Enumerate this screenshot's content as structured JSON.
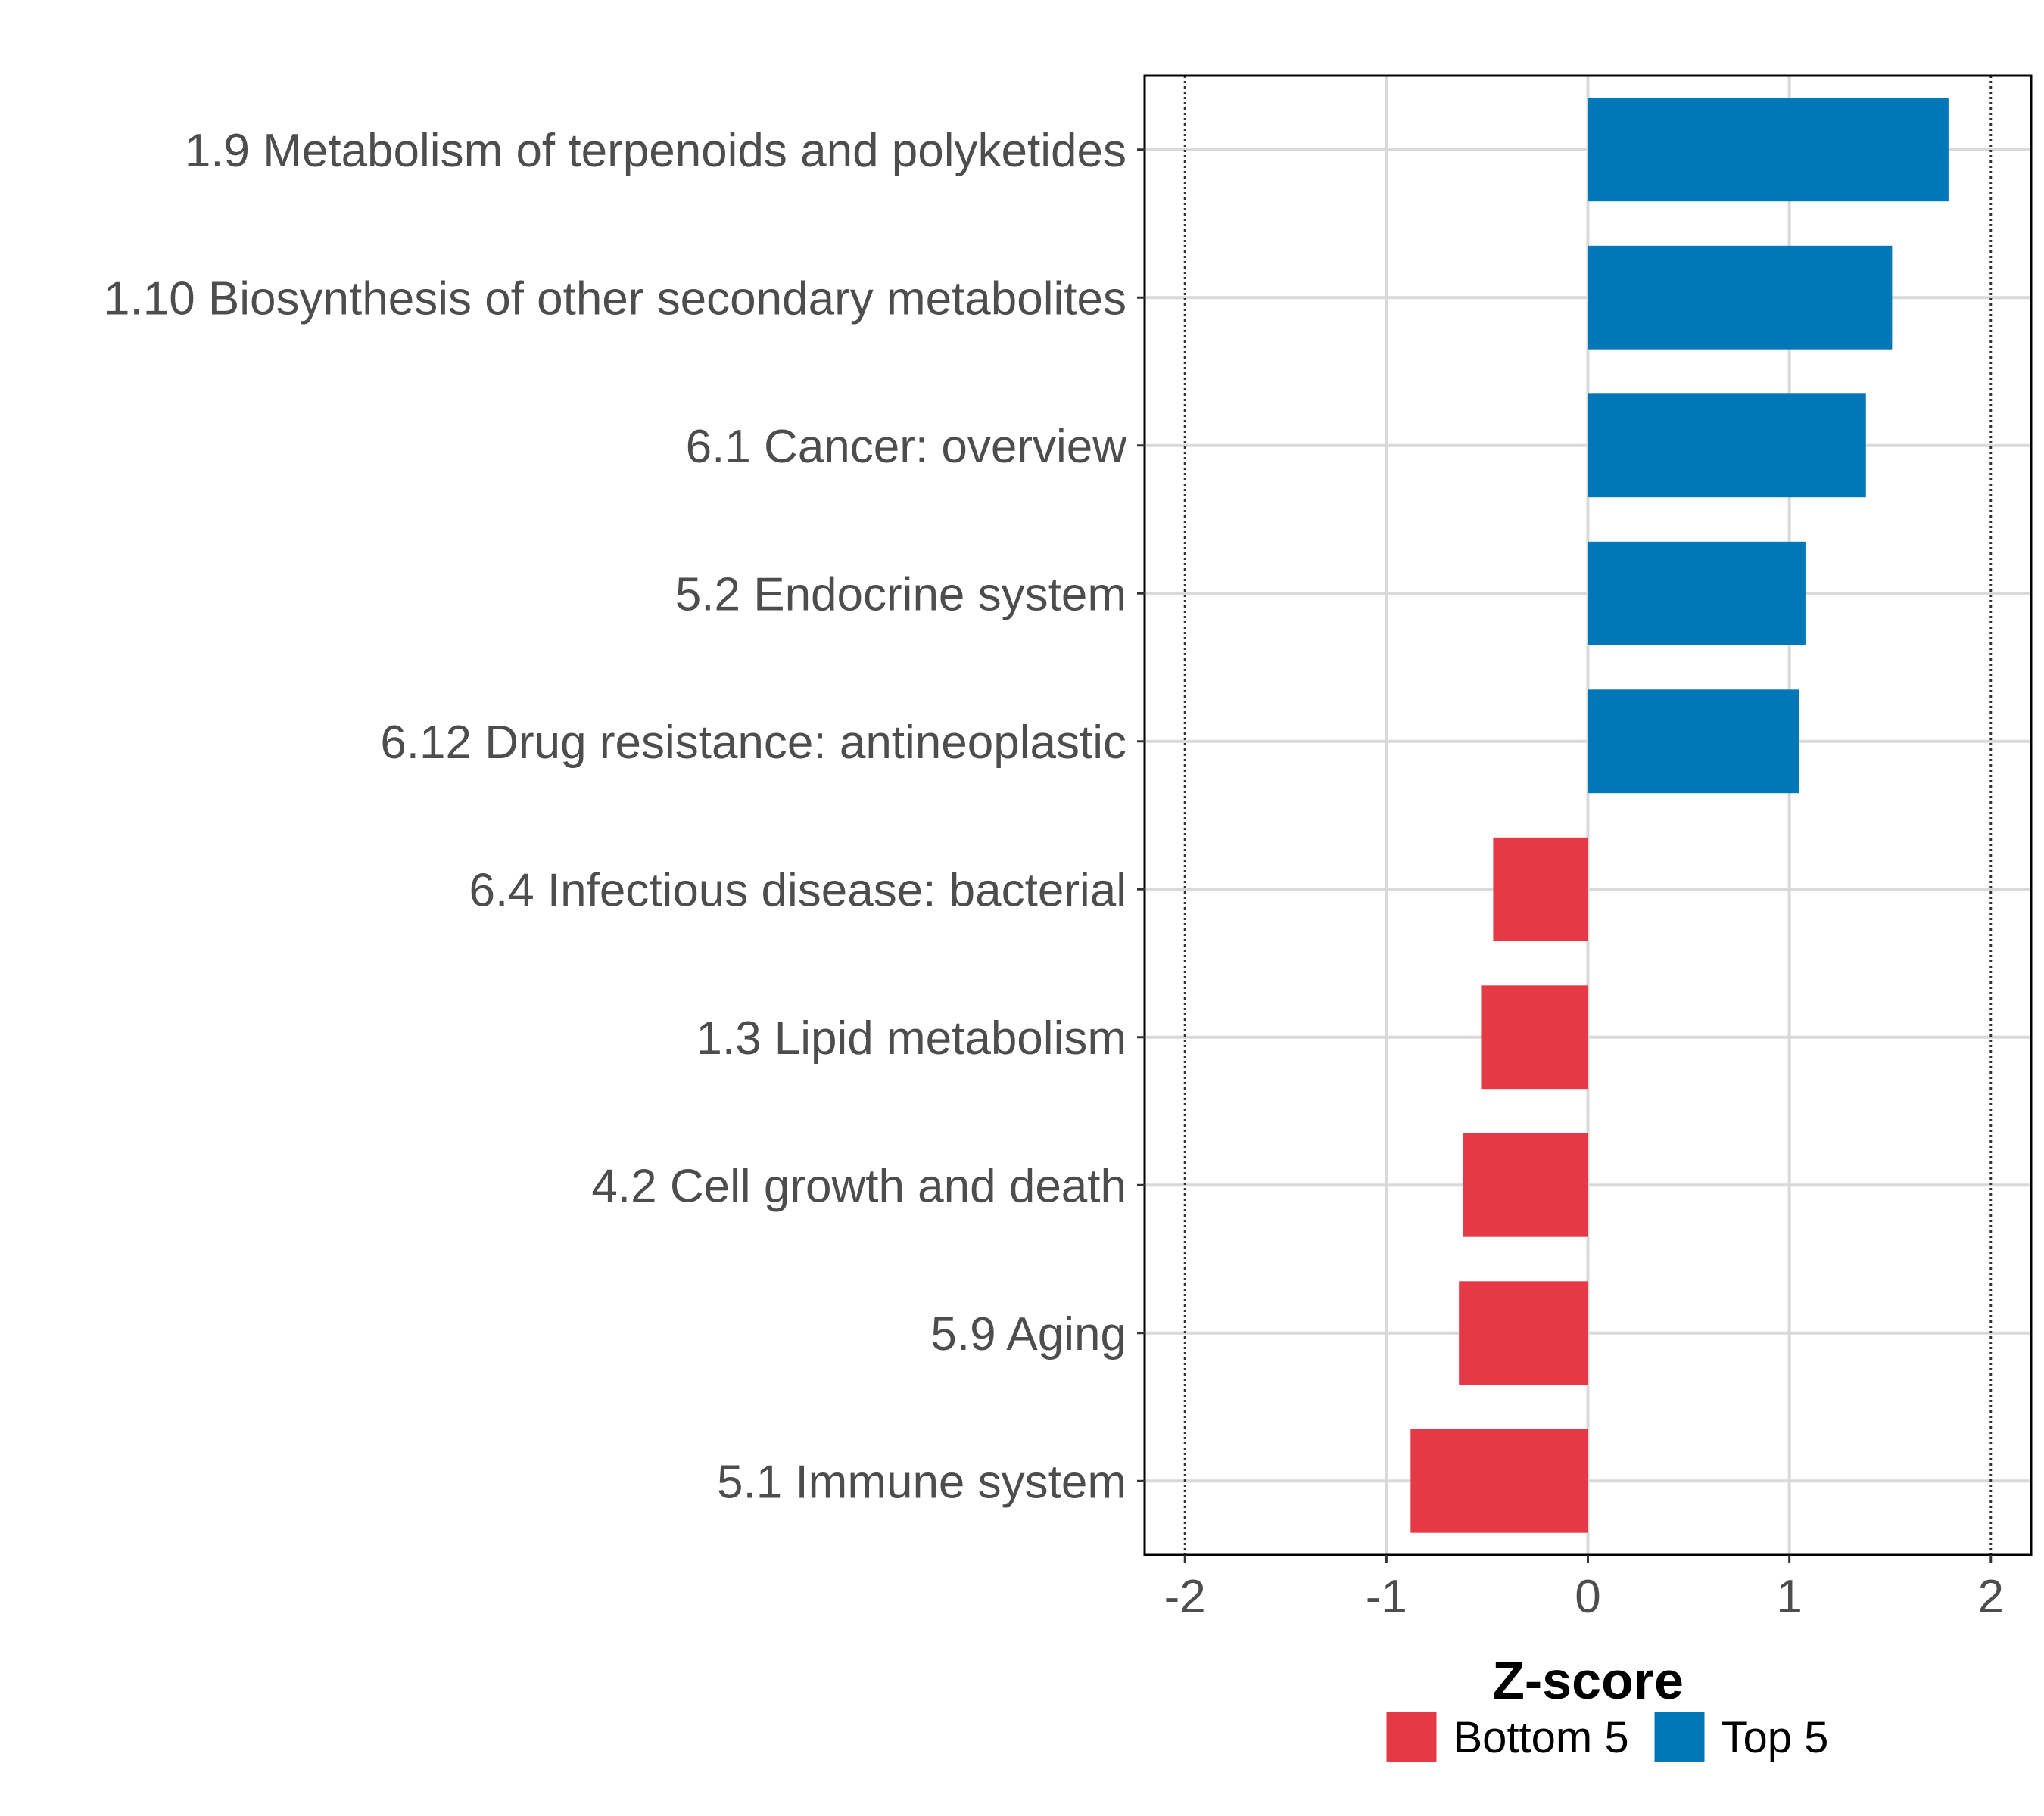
{
  "chart_data": {
    "type": "bar",
    "orientation": "horizontal",
    "title": "",
    "xlabel": "Z-score",
    "ylabel": "",
    "xlim": [
      -2.2,
      2.2
    ],
    "x_ticks": [
      -2,
      -1,
      0,
      1,
      2
    ],
    "x_tick_labels": [
      "-2",
      "-1",
      "0",
      "1",
      "2"
    ],
    "reference_lines": [
      -2,
      2
    ],
    "grid": true,
    "categories": [
      "1.9 Metabolism of terpenoids and polyketides",
      "1.10 Biosynthesis of other secondary metabolites",
      "6.1 Cancer: overview",
      "5.2 Endocrine system",
      "6.12 Drug resistance: antineoplastic",
      "6.4 Infectious disease: bacterial",
      "1.3 Lipid metabolism",
      "4.2 Cell growth and death",
      "5.9 Aging",
      "5.1 Immune system"
    ],
    "values": [
      1.79,
      1.51,
      1.38,
      1.08,
      1.05,
      -0.47,
      -0.53,
      -0.62,
      -0.64,
      -0.88
    ],
    "groups": [
      "Top 5",
      "Top 5",
      "Top 5",
      "Top 5",
      "Top 5",
      "Bottom 5",
      "Bottom 5",
      "Bottom 5",
      "Bottom 5",
      "Bottom 5"
    ],
    "legend": {
      "position": "bottom",
      "entries": [
        {
          "label": "Bottom 5",
          "color": "#e63946"
        },
        {
          "label": "Top 5",
          "color": "#0077b6"
        }
      ]
    }
  },
  "colors": {
    "Top 5": "#0077b6",
    "Bottom 5": "#e63946",
    "grid": "#d9d9d9",
    "text": "#4d4d4d"
  }
}
